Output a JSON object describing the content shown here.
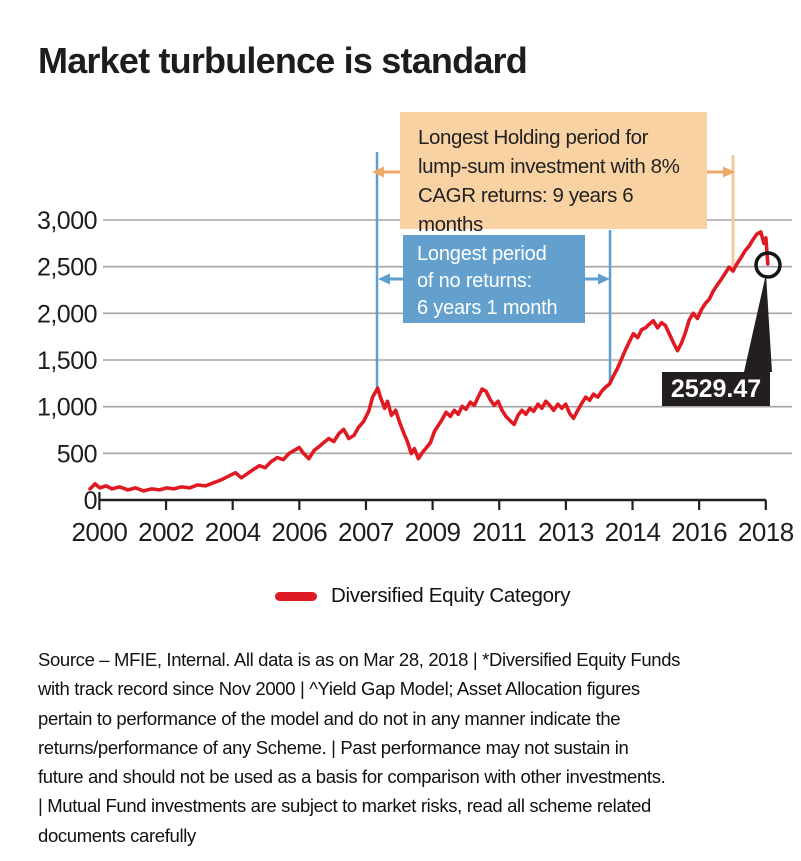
{
  "title": "Market turbulence is standard",
  "legend": {
    "label": "Diversified Equity Category",
    "swatch_color": "#e01a22"
  },
  "annotations": {
    "holding": {
      "line1": "Longest Holding period for",
      "line2": "lump-sum investment with 8%",
      "line3": "CAGR returns: 9 years 6 months"
    },
    "noreturns": {
      "line1": "Longest period",
      "line2": "of no returns:",
      "line3": "6 years 1 month"
    }
  },
  "colors": {
    "line_red": "#e01a22",
    "annotation_orange_bg": "#f9d2a4",
    "annotation_orange_accent": "#f0a964",
    "annotation_blue_bg": "#64a0ce",
    "annotation_blue_accent": "#5f9fd0",
    "grid_gray": "#a3a3a3",
    "axis_black": "#231f20"
  },
  "footnote": {
    "lines": [
      "Source – MFIE, Internal. All data is as on Mar 28, 2018 | *Diversified Equity Funds",
      "with track record since Nov 2000 | ^Yield Gap Model; Asset Allocation figures",
      "pertain to performance of the model and do not in any manner indicate the",
      "returns/performance of any Scheme. | Past performance may not sustain in",
      "future and should not be used as a basis for comparison with other investments.",
      "| Mutual Fund investments are subject to market risks, read all scheme related",
      "documents carefully"
    ]
  },
  "chart_data": {
    "type": "line",
    "title": "Market turbulence is standard",
    "xlabel": "",
    "ylabel": "",
    "grid": true,
    "legend_position": "bottom",
    "x_axis": {
      "tick_labels": [
        "2000",
        "2002",
        "2004",
        "2006",
        "2007",
        "2009",
        "2011",
        "2013",
        "2014",
        "2016",
        "2018"
      ]
    },
    "y_axis": {
      "tick_labels": [
        "0",
        "500",
        "1,000",
        "1,500",
        "2,000",
        "2,500",
        "3,000"
      ],
      "tick_values": [
        0,
        500,
        1000,
        1500,
        2000,
        2500,
        3000
      ],
      "range": [
        0,
        3000
      ]
    },
    "last_value_label": "2529.47",
    "last_value": 2529.47,
    "annotation_spans": [
      {
        "label": "Longest Holding period for lump-sum investment with 8% CAGR returns: 9 years 6 months",
        "from_year": 2008.2,
        "to_year": 2017.3
      },
      {
        "label": "Longest period of no returns: 6 years 1 month",
        "from_year": 2008.2,
        "to_year": 2014.2
      }
    ],
    "series": [
      {
        "name": "Diversified Equity Category",
        "color": "#e01a22",
        "points": [
          [
            2000.87,
            119
          ],
          [
            2001.0,
            173
          ],
          [
            2001.12,
            130
          ],
          [
            2001.28,
            151
          ],
          [
            2001.43,
            119
          ],
          [
            2001.63,
            140
          ],
          [
            2001.84,
            108
          ],
          [
            2002.04,
            130
          ],
          [
            2002.24,
            97
          ],
          [
            2002.45,
            119
          ],
          [
            2002.65,
            108
          ],
          [
            2002.83,
            130
          ],
          [
            2003.01,
            119
          ],
          [
            2003.21,
            140
          ],
          [
            2003.42,
            130
          ],
          [
            2003.62,
            162
          ],
          [
            2003.82,
            151
          ],
          [
            2004.03,
            184
          ],
          [
            2004.23,
            216
          ],
          [
            2004.43,
            259
          ],
          [
            2004.59,
            292
          ],
          [
            2004.74,
            238
          ],
          [
            2004.89,
            281
          ],
          [
            2005.04,
            324
          ],
          [
            2005.2,
            367
          ],
          [
            2005.35,
            346
          ],
          [
            2005.5,
            410
          ],
          [
            2005.66,
            454
          ],
          [
            2005.81,
            432
          ],
          [
            2005.96,
            497
          ],
          [
            2006.09,
            529
          ],
          [
            2006.22,
            562
          ],
          [
            2006.34,
            497
          ],
          [
            2006.47,
            443
          ],
          [
            2006.6,
            529
          ],
          [
            2006.73,
            572
          ],
          [
            2006.85,
            616
          ],
          [
            2006.98,
            659
          ],
          [
            2007.11,
            626
          ],
          [
            2007.24,
            713
          ],
          [
            2007.36,
            756
          ],
          [
            2007.49,
            659
          ],
          [
            2007.62,
            691
          ],
          [
            2007.74,
            778
          ],
          [
            2007.87,
            842
          ],
          [
            2008.0,
            950
          ],
          [
            2008.1,
            1102
          ],
          [
            2008.23,
            1199
          ],
          [
            2008.3,
            1102
          ],
          [
            2008.41,
            983
          ],
          [
            2008.48,
            1058
          ],
          [
            2008.58,
            907
          ],
          [
            2008.69,
            961
          ],
          [
            2008.79,
            832
          ],
          [
            2008.89,
            724
          ],
          [
            2008.99,
            626
          ],
          [
            2009.09,
            497
          ],
          [
            2009.17,
            551
          ],
          [
            2009.27,
            443
          ],
          [
            2009.37,
            508
          ],
          [
            2009.48,
            562
          ],
          [
            2009.58,
            616
          ],
          [
            2009.68,
            734
          ],
          [
            2009.78,
            799
          ],
          [
            2009.88,
            864
          ],
          [
            2009.98,
            940
          ],
          [
            2010.09,
            896
          ],
          [
            2010.19,
            961
          ],
          [
            2010.29,
            918
          ],
          [
            2010.39,
            1004
          ],
          [
            2010.49,
            972
          ],
          [
            2010.6,
            1048
          ],
          [
            2010.7,
            1015
          ],
          [
            2010.8,
            1102
          ],
          [
            2010.9,
            1188
          ],
          [
            2011.0,
            1166
          ],
          [
            2011.1,
            1080
          ],
          [
            2011.21,
            1015
          ],
          [
            2011.31,
            1058
          ],
          [
            2011.41,
            961
          ],
          [
            2011.51,
            896
          ],
          [
            2011.61,
            853
          ],
          [
            2011.72,
            810
          ],
          [
            2011.82,
            907
          ],
          [
            2011.92,
            961
          ],
          [
            2012.02,
            918
          ],
          [
            2012.12,
            983
          ],
          [
            2012.22,
            950
          ],
          [
            2012.33,
            1026
          ],
          [
            2012.43,
            983
          ],
          [
            2012.53,
            1058
          ],
          [
            2012.63,
            1015
          ],
          [
            2012.73,
            961
          ],
          [
            2012.84,
            1026
          ],
          [
            2012.94,
            983
          ],
          [
            2013.04,
            1026
          ],
          [
            2013.14,
            929
          ],
          [
            2013.24,
            875
          ],
          [
            2013.35,
            961
          ],
          [
            2013.45,
            1037
          ],
          [
            2013.55,
            1102
          ],
          [
            2013.65,
            1069
          ],
          [
            2013.75,
            1134
          ],
          [
            2013.86,
            1102
          ],
          [
            2013.96,
            1166
          ],
          [
            2014.06,
            1210
          ],
          [
            2014.16,
            1242
          ],
          [
            2014.26,
            1328
          ],
          [
            2014.37,
            1415
          ],
          [
            2014.47,
            1512
          ],
          [
            2014.57,
            1609
          ],
          [
            2014.67,
            1696
          ],
          [
            2014.77,
            1782
          ],
          [
            2014.88,
            1739
          ],
          [
            2014.98,
            1825
          ],
          [
            2015.08,
            1845
          ],
          [
            2015.18,
            1885
          ],
          [
            2015.28,
            1920
          ],
          [
            2015.39,
            1845
          ],
          [
            2015.49,
            1900
          ],
          [
            2015.59,
            1870
          ],
          [
            2015.69,
            1780
          ],
          [
            2015.79,
            1690
          ],
          [
            2015.9,
            1600
          ],
          [
            2016.0,
            1680
          ],
          [
            2016.1,
            1790
          ],
          [
            2016.2,
            1930
          ],
          [
            2016.3,
            2000
          ],
          [
            2016.41,
            1945
          ],
          [
            2016.51,
            2040
          ],
          [
            2016.61,
            2105
          ],
          [
            2016.71,
            2150
          ],
          [
            2016.81,
            2235
          ],
          [
            2016.91,
            2300
          ],
          [
            2017.02,
            2365
          ],
          [
            2017.12,
            2430
          ],
          [
            2017.22,
            2495
          ],
          [
            2017.32,
            2452
          ],
          [
            2017.42,
            2530
          ],
          [
            2017.53,
            2600
          ],
          [
            2017.63,
            2670
          ],
          [
            2017.73,
            2720
          ],
          [
            2017.83,
            2790
          ],
          [
            2017.93,
            2850
          ],
          [
            2018.03,
            2873
          ],
          [
            2018.11,
            2750
          ],
          [
            2018.16,
            2808
          ],
          [
            2018.21,
            2529.47
          ]
        ]
      }
    ]
  }
}
